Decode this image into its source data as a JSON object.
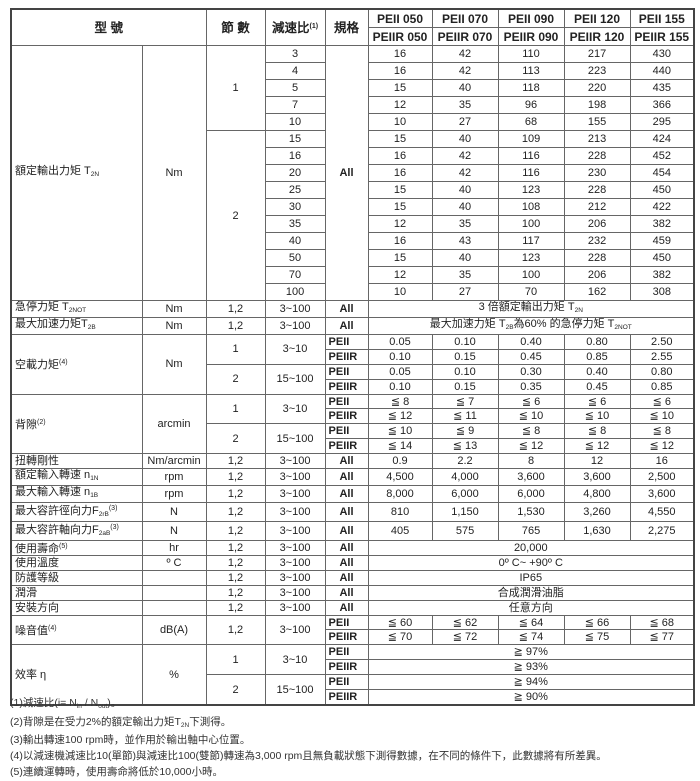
{
  "header": {
    "model": "型 號",
    "stages": "節 數",
    "ratio": [
      {
        "t": "減速比"
      },
      {
        "sup": "(1)"
      }
    ],
    "spec": "規格",
    "models_a": [
      "PEII 050",
      "PEII 070",
      "PEII 090",
      "PEII 120",
      "PEII 155"
    ],
    "models_b": [
      "PEIIR 050",
      "PEIIR 070",
      "PEIIR 090",
      "PEIIR 120",
      "PEIIR 155"
    ]
  },
  "rated_torque": {
    "label": [
      {
        "t": "額定輸出力矩 T"
      },
      {
        "sub": "2N"
      }
    ],
    "unit": "Nm",
    "spec": "All",
    "groups": [
      {
        "stage": "1",
        "rows": [
          {
            "ratio": "3",
            "values": [
              "16",
              "42",
              "110",
              "217",
              "430"
            ]
          },
          {
            "ratio": "4",
            "values": [
              "16",
              "42",
              "113",
              "223",
              "440"
            ]
          },
          {
            "ratio": "5",
            "values": [
              "15",
              "40",
              "118",
              "220",
              "435"
            ]
          },
          {
            "ratio": "7",
            "values": [
              "12",
              "35",
              "96",
              "198",
              "366"
            ]
          },
          {
            "ratio": "10",
            "values": [
              "10",
              "27",
              "68",
              "155",
              "295"
            ]
          }
        ]
      },
      {
        "stage": "2",
        "rows": [
          {
            "ratio": "15",
            "values": [
              "15",
              "40",
              "109",
              "213",
              "424"
            ]
          },
          {
            "ratio": "16",
            "values": [
              "16",
              "42",
              "116",
              "228",
              "452"
            ]
          },
          {
            "ratio": "20",
            "values": [
              "16",
              "42",
              "116",
              "230",
              "454"
            ]
          },
          {
            "ratio": "25",
            "values": [
              "15",
              "40",
              "123",
              "228",
              "450"
            ]
          },
          {
            "ratio": "30",
            "values": [
              "15",
              "40",
              "108",
              "212",
              "422"
            ]
          },
          {
            "ratio": "35",
            "values": [
              "12",
              "35",
              "100",
              "206",
              "382"
            ]
          },
          {
            "ratio": "40",
            "values": [
              "16",
              "43",
              "117",
              "232",
              "459"
            ]
          },
          {
            "ratio": "50",
            "values": [
              "15",
              "40",
              "123",
              "228",
              "450"
            ]
          },
          {
            "ratio": "70",
            "values": [
              "12",
              "35",
              "100",
              "206",
              "382"
            ]
          },
          {
            "ratio": "100",
            "values": [
              "10",
              "27",
              "70",
              "162",
              "308"
            ]
          }
        ]
      }
    ]
  },
  "sections": [
    {
      "label": [
        {
          "t": "急停力矩 T"
        },
        {
          "sub": "2NOT"
        }
      ],
      "unit": "Nm",
      "groups": [
        {
          "stage": "1,2",
          "ratio": "3~100",
          "lines": [
            {
              "spec": "All",
              "span": [
                {
                  "t": "3 倍額定輸出力矩 T"
                },
                {
                  "sub": "2N"
                }
              ]
            }
          ]
        }
      ]
    },
    {
      "label": [
        {
          "t": "最大加速力矩T"
        },
        {
          "sub": "2B"
        }
      ],
      "unit": "Nm",
      "groups": [
        {
          "stage": "1,2",
          "ratio": "3~100",
          "lines": [
            {
              "spec": "All",
              "span": [
                {
                  "t": "最大加速力矩 T"
                },
                {
                  "sub": "2B"
                },
                {
                  "t": "為60% 的急停力矩 T"
                },
                {
                  "sub": "2NOT"
                }
              ]
            }
          ]
        }
      ]
    },
    {
      "label": [
        {
          "t": "空載力矩"
        },
        {
          "sup": "(4)"
        }
      ],
      "unit": "Nm",
      "groups": [
        {
          "stage": "1",
          "ratio": "3~10",
          "lines": [
            {
              "spec": "PEII",
              "values": [
                "0.05",
                "0.10",
                "0.40",
                "0.80",
                "2.50"
              ]
            },
            {
              "spec": "PEIIR",
              "values": [
                "0.10",
                "0.15",
                "0.45",
                "0.85",
                "2.55"
              ]
            }
          ]
        },
        {
          "stage": "2",
          "ratio": "15~100",
          "lines": [
            {
              "spec": "PEII",
              "values": [
                "0.05",
                "0.10",
                "0.30",
                "0.40",
                "0.80"
              ]
            },
            {
              "spec": "PEIIR",
              "values": [
                "0.10",
                "0.15",
                "0.35",
                "0.45",
                "0.85"
              ]
            }
          ]
        }
      ]
    },
    {
      "label": [
        {
          "t": "背隙"
        },
        {
          "sup": "(2)"
        }
      ],
      "unit": "arcmin",
      "groups": [
        {
          "stage": "1",
          "ratio": "3~10",
          "lines": [
            {
              "spec": "PEII",
              "values": [
                "≦ 8",
                "≦ 7",
                "≦ 6",
                "≦ 6",
                "≦ 6"
              ]
            },
            {
              "spec": "PEIIR",
              "values": [
                "≦ 12",
                "≦ 11",
                "≦ 10",
                "≦ 10",
                "≦ 10"
              ]
            }
          ]
        },
        {
          "stage": "2",
          "ratio": "15~100",
          "lines": [
            {
              "spec": "PEII",
              "values": [
                "≦ 10",
                "≦ 9",
                "≦ 8",
                "≦ 8",
                "≦ 8"
              ]
            },
            {
              "spec": "PEIIR",
              "values": [
                "≦ 14",
                "≦ 13",
                "≦ 12",
                "≦ 12",
                "≦ 12"
              ]
            }
          ]
        }
      ]
    },
    {
      "label": [
        {
          "t": "扭轉剛性"
        }
      ],
      "unit": "Nm/arcmin",
      "groups": [
        {
          "stage": "1,2",
          "ratio": "3~100",
          "lines": [
            {
              "spec": "All",
              "values": [
                "0.9",
                "2.2",
                "8",
                "12",
                "16"
              ]
            }
          ]
        }
      ]
    },
    {
      "label": [
        {
          "t": "額定輸入轉速 n"
        },
        {
          "sub": "1N"
        }
      ],
      "unit": "rpm",
      "groups": [
        {
          "stage": "1,2",
          "ratio": "3~100",
          "lines": [
            {
              "spec": "All",
              "values": [
                "4,500",
                "4,000",
                "3,600",
                "3,600",
                "2,500"
              ]
            }
          ]
        }
      ]
    },
    {
      "label": [
        {
          "t": "最大輸入轉速 n"
        },
        {
          "sub": "1B"
        }
      ],
      "unit": "rpm",
      "groups": [
        {
          "stage": "1,2",
          "ratio": "3~100",
          "lines": [
            {
              "spec": "All",
              "values": [
                "8,000",
                "6,000",
                "6,000",
                "4,800",
                "3,600"
              ]
            }
          ]
        }
      ]
    },
    {
      "label": [
        {
          "t": "最大容許徑向力F"
        },
        {
          "sub": "2rB"
        },
        {
          "sup": "(3)"
        }
      ],
      "unit": "N",
      "groups": [
        {
          "stage": "1,2",
          "ratio": "3~100",
          "lines": [
            {
              "spec": "All",
              "values": [
                "810",
                "1,150",
                "1,530",
                "3,260",
                "4,550"
              ]
            }
          ]
        }
      ]
    },
    {
      "label": [
        {
          "t": "最大容許軸向力F"
        },
        {
          "sub": "2aB"
        },
        {
          "sup": "(3)"
        }
      ],
      "unit": "N",
      "groups": [
        {
          "stage": "1,2",
          "ratio": "3~100",
          "lines": [
            {
              "spec": "All",
              "values": [
                "405",
                "575",
                "765",
                "1,630",
                "2,275"
              ]
            }
          ]
        }
      ]
    },
    {
      "label": [
        {
          "t": "使用壽命"
        },
        {
          "sup": "(5)"
        }
      ],
      "unit": "hr",
      "groups": [
        {
          "stage": "1,2",
          "ratio": "3~100",
          "lines": [
            {
              "spec": "All",
              "span": [
                {
                  "t": "20,000"
                }
              ]
            }
          ]
        }
      ]
    },
    {
      "label": [
        {
          "t": "使用溫度"
        }
      ],
      "unit": "º C",
      "groups": [
        {
          "stage": "1,2",
          "ratio": "3~100",
          "lines": [
            {
              "spec": "All",
              "span": [
                {
                  "t": "0º C~ +90º C"
                }
              ]
            }
          ]
        }
      ]
    },
    {
      "label": [
        {
          "t": "防護等級"
        }
      ],
      "unit": "",
      "groups": [
        {
          "stage": "1,2",
          "ratio": "3~100",
          "lines": [
            {
              "spec": "All",
              "span": [
                {
                  "t": "IP65"
                }
              ]
            }
          ]
        }
      ]
    },
    {
      "label": [
        {
          "t": "潤滑"
        }
      ],
      "unit": "",
      "groups": [
        {
          "stage": "1,2",
          "ratio": "3~100",
          "lines": [
            {
              "spec": "All",
              "span": [
                {
                  "t": "合成潤滑油脂"
                }
              ]
            }
          ]
        }
      ]
    },
    {
      "label": [
        {
          "t": "安裝方向"
        }
      ],
      "unit": "",
      "groups": [
        {
          "stage": "1,2",
          "ratio": "3~100",
          "lines": [
            {
              "spec": "All",
              "span": [
                {
                  "t": "任意方向"
                }
              ]
            }
          ]
        }
      ]
    },
    {
      "label": [
        {
          "t": "噪音值"
        },
        {
          "sup": "(4)"
        }
      ],
      "unit": "dB(A)",
      "groups": [
        {
          "stage": "1,2",
          "ratio": "3~100",
          "lines": [
            {
              "spec": "PEII",
              "values": [
                "≦ 60",
                "≦ 62",
                "≦ 64",
                "≦ 66",
                "≦ 68"
              ]
            },
            {
              "spec": "PEIIR",
              "values": [
                "≦ 70",
                "≦ 72",
                "≦ 74",
                "≦ 75",
                "≦ 77"
              ]
            }
          ]
        }
      ]
    },
    {
      "label": [
        {
          "t": "效率 η"
        }
      ],
      "unit": "%",
      "groups": [
        {
          "stage": "1",
          "ratio": "3~10",
          "lines": [
            {
              "spec": "PEII",
              "span": [
                {
                  "t": "≧ 97%"
                }
              ]
            },
            {
              "spec": "PEIIR",
              "span": [
                {
                  "t": "≧ 93%"
                }
              ]
            }
          ]
        },
        {
          "stage": "2",
          "ratio": "15~100",
          "lines": [
            {
              "spec": "PEII",
              "span": [
                {
                  "t": "≧ 94%"
                }
              ]
            },
            {
              "spec": "PEIIR",
              "span": [
                {
                  "t": "≧ 90%"
                }
              ]
            }
          ]
        }
      ]
    }
  ],
  "footnotes": [
    [
      {
        "t": "(1)減速比(i= N"
      },
      {
        "sub": "in"
      },
      {
        "t": " / N"
      },
      {
        "sub": "out"
      },
      {
        "t": ")。"
      }
    ],
    [
      {
        "t": "(2)背隙是在受力2%的額定輸出力矩T"
      },
      {
        "sub": "2N"
      },
      {
        "t": "下測得。"
      }
    ],
    [
      {
        "t": "(3)輸出轉速100 rpm時，並作用於輸出軸中心位置。"
      }
    ],
    [
      {
        "t": "(4)以減速機減速比10(單節)與減速比100(雙節)轉速為3,000 rpm且無負載狀態下測得數據，在不同的條件下，此數據將有所差異。"
      }
    ],
    [
      {
        "t": "(5)連續運轉時，使用壽命將低於10,000小時。"
      }
    ]
  ]
}
